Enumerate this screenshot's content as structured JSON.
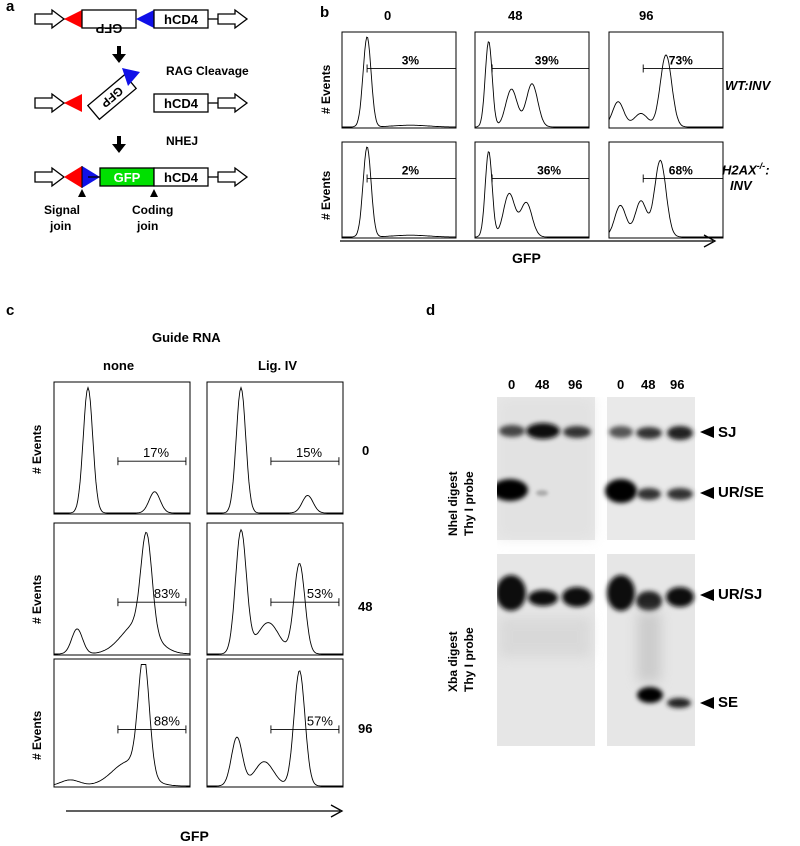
{
  "panel_a": {
    "letter": "a",
    "gfp_inverted": "GFP",
    "gfp_tilted": "GFP",
    "gfp_final": "GFP",
    "hcd4": "hCD4",
    "rag_cleavage": "RAG Cleavage",
    "nhej": "NHEJ",
    "signal_join_1": "Signal",
    "signal_join_2": "join",
    "coding_join_1": "Coding",
    "coding_join_2": "join",
    "colors": {
      "red": "#ff0000",
      "blue": "#1010e8",
      "green": "#00e000"
    }
  },
  "panel_b": {
    "letter": "b",
    "col_headers": [
      "0",
      "48",
      "96"
    ],
    "row_labels": [
      "WT:INV",
      "H2AX-/-: INV"
    ],
    "row1_label": "WT:INV",
    "row2_label_a": "H2AX",
    "row2_label_sup": "-/-",
    "row2_label_b": ":",
    "row2_label_c": "INV",
    "ylabel": "# Events",
    "xlabel": "GFP",
    "percents_row1": [
      "3%",
      "39%",
      "73%"
    ],
    "percents_row2": [
      "2%",
      "36%",
      "68%"
    ]
  },
  "panel_c": {
    "letter": "c",
    "title": "Guide RNA",
    "col_headers": [
      "none",
      "Lig. IV"
    ],
    "row_labels": [
      "0",
      "48",
      "96"
    ],
    "ylabel": "# Events",
    "xlabel": "GFP",
    "percents": [
      [
        "17%",
        "15%"
      ],
      [
        "83%",
        "53%"
      ],
      [
        "88%",
        "57%"
      ]
    ]
  },
  "panel_d": {
    "letter": "d",
    "lane_labels": [
      "0",
      "48",
      "96",
      "0",
      "48",
      "96"
    ],
    "top_label_1": "NheI digest",
    "top_label_2": "Thy I probe",
    "bottom_label_1": "Xba digest",
    "bottom_label_2": "Thy I probe",
    "band_labels": [
      "SJ",
      "UR/SE",
      "UR/SJ",
      "SE"
    ]
  }
}
